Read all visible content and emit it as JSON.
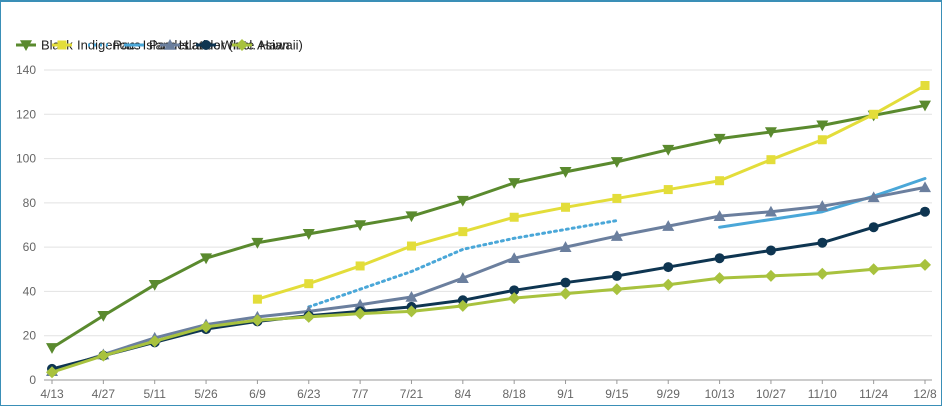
{
  "chart_data": {
    "type": "line",
    "title": "",
    "xlabel": "",
    "ylabel": "",
    "categories": [
      "4/13",
      "4/27",
      "5/11",
      "5/26",
      "6/9",
      "6/23",
      "7/7",
      "7/21",
      "8/4",
      "8/18",
      "9/1",
      "9/15",
      "9/29",
      "10/13",
      "10/27",
      "11/10",
      "11/24",
      "12/8"
    ],
    "yticks": [
      0,
      20,
      40,
      60,
      80,
      100,
      120,
      140
    ],
    "ylim": [
      0,
      140
    ],
    "grid": true,
    "legend": "top-left",
    "series": [
      {
        "name": "Black",
        "color": "#5a8a2e",
        "marker": "triangle-down",
        "dash": false,
        "values": [
          14.5,
          29,
          43,
          55,
          62,
          66,
          70,
          74,
          81,
          89,
          94,
          98.5,
          104,
          109,
          112,
          115,
          119.5,
          124
        ]
      },
      {
        "name": "Indigenous",
        "color": "#e3dd3a",
        "marker": "square",
        "dash": false,
        "values": [
          null,
          null,
          null,
          null,
          36.5,
          43.5,
          51.5,
          60.5,
          67,
          73.5,
          78,
          82,
          86,
          90,
          99.5,
          108.5,
          120,
          133
        ]
      },
      {
        "name": "Pac. Islander",
        "color": "#4aa7d8",
        "marker": "none",
        "dash": true,
        "values": [
          null,
          null,
          null,
          null,
          null,
          33,
          41,
          49,
          59,
          64,
          68,
          72,
          null,
          null,
          null,
          null,
          null,
          null
        ]
      },
      {
        "name": "Pac. Islander (incl. Hawaii)",
        "color": "#4aa7d8",
        "marker": "none",
        "dash": false,
        "values": [
          null,
          null,
          null,
          null,
          null,
          null,
          null,
          null,
          null,
          null,
          null,
          null,
          null,
          69,
          72.5,
          76,
          83,
          91
        ]
      },
      {
        "name": "Latino",
        "color": "#6b7f9e",
        "marker": "triangle-up",
        "dash": false,
        "values": [
          4,
          11.5,
          19,
          25,
          28.5,
          31,
          34,
          37.5,
          46,
          55,
          60,
          65,
          69.5,
          74,
          76,
          78.5,
          82.5,
          87
        ]
      },
      {
        "name": "White",
        "color": "#0e3551",
        "marker": "circle",
        "dash": false,
        "values": [
          5,
          11,
          17,
          23,
          26.5,
          29,
          31,
          33,
          36,
          40.5,
          44,
          47,
          51,
          55,
          58.5,
          62,
          69,
          76
        ]
      },
      {
        "name": "Asian",
        "color": "#a8c23e",
        "marker": "diamond",
        "dash": false,
        "values": [
          3.5,
          11,
          17.5,
          24,
          27,
          28.5,
          30,
          31,
          33.5,
          37,
          39,
          41,
          43,
          46,
          47,
          48,
          50,
          52
        ]
      }
    ]
  }
}
